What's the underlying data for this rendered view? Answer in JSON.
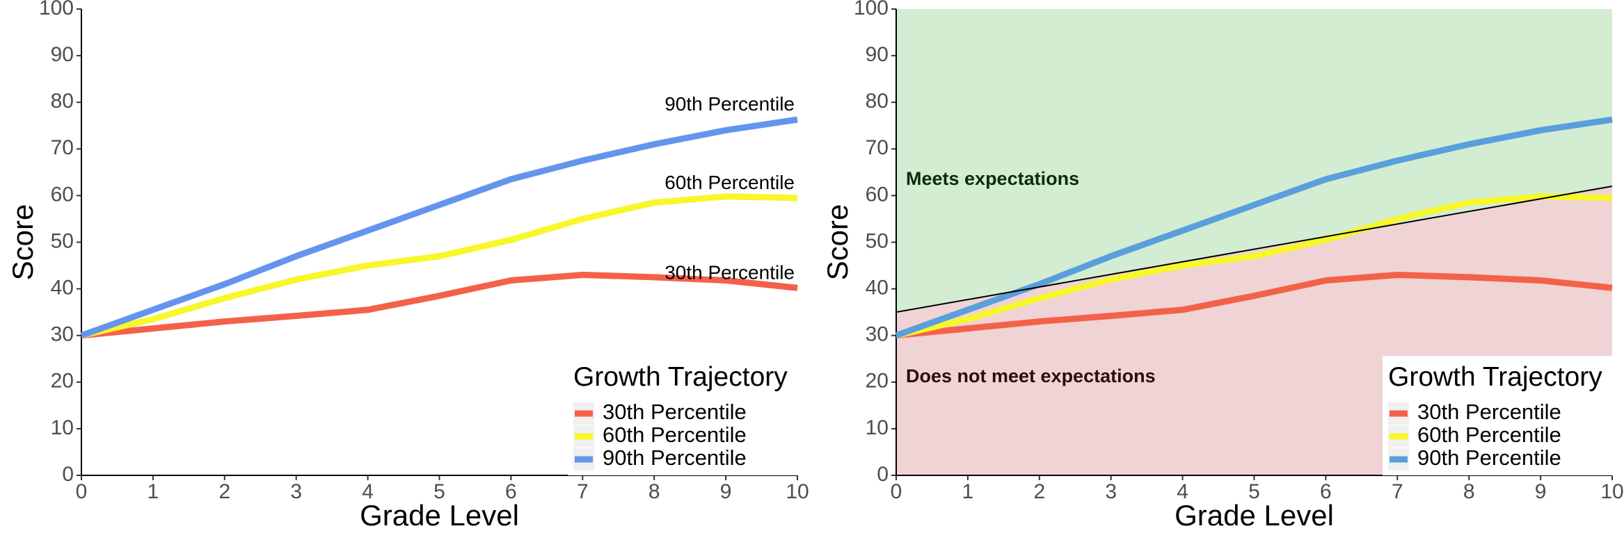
{
  "chart_data": [
    {
      "type": "line",
      "x": [
        0,
        1,
        2,
        3,
        4,
        5,
        6,
        7,
        8,
        9,
        10
      ],
      "series": [
        {
          "name": "30th Percentile",
          "color": "#f4614a",
          "values": [
            30,
            31.5,
            33,
            34.2,
            35.5,
            38.5,
            41.8,
            43,
            42.5,
            41.8,
            40.2
          ]
        },
        {
          "name": "60th Percentile",
          "color": "#f7f72a",
          "values": [
            30,
            33.5,
            38,
            42,
            45,
            47,
            50.5,
            55,
            58.5,
            59.8,
            59.5
          ]
        },
        {
          "name": "90th Percentile",
          "color": "#6495ed",
          "values": [
            30,
            35.5,
            41,
            47,
            52.5,
            58,
            63.5,
            67.5,
            71,
            74,
            76.3
          ]
        }
      ],
      "xlim": [
        0,
        10
      ],
      "ylim": [
        0,
        100
      ],
      "xticks": [
        0,
        1,
        2,
        3,
        4,
        5,
        6,
        7,
        8,
        9,
        10
      ],
      "yticks": [
        0,
        10,
        20,
        30,
        40,
        50,
        60,
        70,
        80,
        90,
        100
      ],
      "xlabel": "Grade Level",
      "ylabel": "Score",
      "legend_title": "Growth Trajectory",
      "legend_position": "bottom-right",
      "end_labels": true
    },
    {
      "type": "line",
      "x": [
        0,
        1,
        2,
        3,
        4,
        5,
        6,
        7,
        8,
        9,
        10
      ],
      "series": [
        {
          "name": "30th Percentile",
          "color": "#f4614a",
          "values": [
            30,
            31.5,
            33,
            34.2,
            35.5,
            38.5,
            41.8,
            43,
            42.5,
            41.8,
            40.2
          ]
        },
        {
          "name": "60th Percentile",
          "color": "#f7f72a",
          "values": [
            30,
            33.5,
            38,
            42,
            45,
            47,
            50.5,
            55,
            58.5,
            59.8,
            59.5
          ]
        },
        {
          "name": "90th Percentile",
          "color": "#5a9fdc",
          "values": [
            30,
            35.5,
            41,
            47,
            52.5,
            58,
            63.5,
            67.5,
            71,
            74,
            76.3
          ]
        }
      ],
      "xlim": [
        0,
        10
      ],
      "ylim": [
        0,
        100
      ],
      "xticks": [
        0,
        1,
        2,
        3,
        4,
        5,
        6,
        7,
        8,
        9,
        10
      ],
      "yticks": [
        0,
        10,
        20,
        30,
        40,
        50,
        60,
        70,
        80,
        90,
        100
      ],
      "xlabel": "Grade Level",
      "ylabel": "Score",
      "legend_title": "Growth Trajectory",
      "legend_position": "bottom-right",
      "end_labels": false,
      "threshold": {
        "x": [
          0,
          10
        ],
        "values": [
          35,
          62
        ],
        "color": "#000000"
      },
      "regions": [
        {
          "label": "Meets expectations",
          "side": "above",
          "color": "#d3edd3",
          "text_color": "#0d2b0d"
        },
        {
          "label": "Does not meet expectations",
          "side": "below",
          "color": "#efd3d5",
          "text_color": "#2b0d10"
        }
      ]
    }
  ]
}
